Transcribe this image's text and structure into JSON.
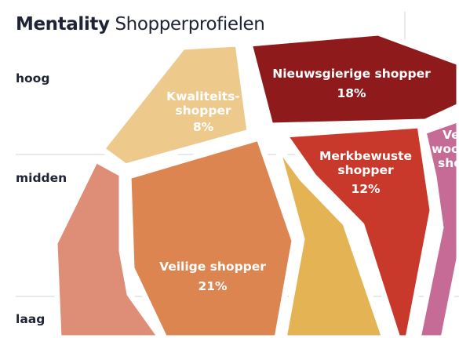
{
  "title": {
    "bold": "Mentality",
    "rest": "Shopperprofielen"
  },
  "axis_labels": {
    "high": "hoog",
    "mid": "midden",
    "low": "laag"
  },
  "segments": [
    {
      "name": "Kwaliteits-shopper",
      "line1": "Kwaliteits-",
      "line2": "shopper",
      "percent": "8%",
      "color": "#edc98b"
    },
    {
      "name": "Nieuwsgierige shopper",
      "line1": "Nieuwsgierige shopper",
      "percent": "18%",
      "color": "#8e1a1c"
    },
    {
      "name": "Merkbewuste shopper",
      "line1": "Merkbewuste",
      "line2": "shopper",
      "percent": "12%",
      "color": "#c8392b"
    },
    {
      "name": "Veilige shopper",
      "line1": "Veilige shopper",
      "percent": "21%",
      "color": "#dc8550"
    },
    {
      "name": "Ve... woon... sho...",
      "line1": "Ve",
      "line2": "woon",
      "line3": "sho",
      "color": "#c66b96"
    },
    {
      "name": "left-salmon",
      "color": "#de8d76"
    },
    {
      "name": "mid-yellow",
      "color": "#e4b354"
    }
  ]
}
